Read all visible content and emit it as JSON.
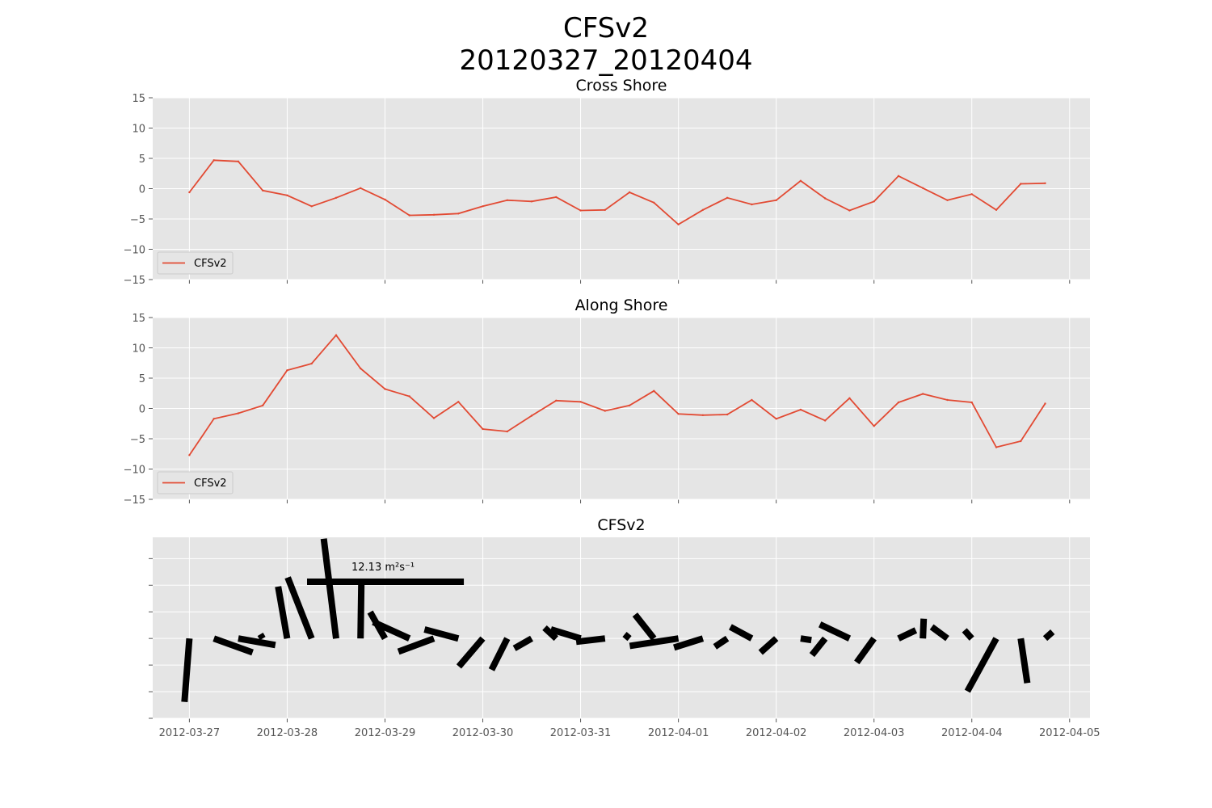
{
  "figure": {
    "title_line1": "CFSv2",
    "title_line2": "20120327_20120404"
  },
  "chart_data": [
    {
      "type": "line",
      "title": "Cross Shore",
      "legend": "lower-left",
      "grid": true,
      "ylim": [
        -15,
        15
      ],
      "yticks": [
        15,
        10,
        5,
        0,
        -5,
        -10,
        -15
      ],
      "xlim": [
        "2012-03-26 15:00",
        "2012-04-05 05:00"
      ],
      "series": [
        {
          "name": "CFSv2",
          "color": "#E24A33",
          "x": [
            "2012-03-27 00:00",
            "2012-03-27 06:00",
            "2012-03-27 12:00",
            "2012-03-27 18:00",
            "2012-03-28 00:00",
            "2012-03-28 06:00",
            "2012-03-28 12:00",
            "2012-03-28 18:00",
            "2012-03-29 00:00",
            "2012-03-29 06:00",
            "2012-03-29 12:00",
            "2012-03-29 18:00",
            "2012-03-30 00:00",
            "2012-03-30 06:00",
            "2012-03-30 12:00",
            "2012-03-30 18:00",
            "2012-03-31 00:00",
            "2012-03-31 06:00",
            "2012-03-31 12:00",
            "2012-03-31 18:00",
            "2012-04-01 00:00",
            "2012-04-01 06:00",
            "2012-04-01 12:00",
            "2012-04-01 18:00",
            "2012-04-02 00:00",
            "2012-04-02 06:00",
            "2012-04-02 12:00",
            "2012-04-02 18:00",
            "2012-04-03 00:00",
            "2012-04-03 06:00",
            "2012-04-03 12:00",
            "2012-04-03 18:00",
            "2012-04-04 00:00",
            "2012-04-04 06:00",
            "2012-04-04 12:00",
            "2012-04-04 18:00"
          ],
          "values": [
            -0.6,
            4.7,
            4.5,
            -0.3,
            -1.1,
            -2.9,
            -1.5,
            0.1,
            -1.8,
            -4.4,
            -4.3,
            -4.1,
            -2.9,
            -1.9,
            -2.1,
            -1.4,
            -3.6,
            -3.5,
            -0.6,
            -2.3,
            -5.9,
            -3.5,
            -1.5,
            -2.6,
            -1.9,
            1.3,
            -1.6,
            -3.6,
            -2.1,
            2.1,
            0.1,
            -1.9,
            -0.9,
            -3.5,
            0.8,
            0.9
          ]
        }
      ]
    },
    {
      "type": "line",
      "title": "Along Shore",
      "legend": "lower-left",
      "grid": true,
      "ylim": [
        -15,
        15
      ],
      "yticks": [
        15,
        10,
        5,
        0,
        -5,
        -10,
        -15
      ],
      "xlim": [
        "2012-03-26 15:00",
        "2012-04-05 05:00"
      ],
      "series": [
        {
          "name": "CFSv2",
          "color": "#E24A33",
          "x": [
            "2012-03-27 00:00",
            "2012-03-27 06:00",
            "2012-03-27 12:00",
            "2012-03-27 18:00",
            "2012-03-28 00:00",
            "2012-03-28 06:00",
            "2012-03-28 12:00",
            "2012-03-28 18:00",
            "2012-03-29 00:00",
            "2012-03-29 06:00",
            "2012-03-29 12:00",
            "2012-03-29 18:00",
            "2012-03-30 00:00",
            "2012-03-30 06:00",
            "2012-03-30 12:00",
            "2012-03-30 18:00",
            "2012-03-31 00:00",
            "2012-03-31 06:00",
            "2012-03-31 12:00",
            "2012-03-31 18:00",
            "2012-04-01 00:00",
            "2012-04-01 06:00",
            "2012-04-01 12:00",
            "2012-04-01 18:00",
            "2012-04-02 00:00",
            "2012-04-02 06:00",
            "2012-04-02 12:00",
            "2012-04-02 18:00",
            "2012-04-03 00:00",
            "2012-04-03 06:00",
            "2012-04-03 12:00",
            "2012-04-03 18:00",
            "2012-04-04 00:00",
            "2012-04-04 06:00",
            "2012-04-04 12:00",
            "2012-04-04 18:00"
          ],
          "values": [
            -7.7,
            -1.7,
            -0.8,
            0.5,
            6.3,
            7.4,
            12.1,
            6.6,
            3.2,
            2.0,
            -1.6,
            1.1,
            -3.4,
            -3.8,
            -1.2,
            1.3,
            1.1,
            -0.4,
            0.5,
            2.9,
            -0.9,
            -1.1,
            -1.0,
            1.4,
            -1.7,
            -0.2,
            -2.0,
            1.7,
            -2.9,
            1.0,
            2.4,
            1.4,
            1.0,
            -6.4,
            -5.4,
            0.8
          ]
        }
      ]
    },
    {
      "type": "quiver",
      "title": "CFSv2",
      "grid": true,
      "ylim": [
        -3.0,
        3.8
      ],
      "yticks_labeled": false,
      "key_label": "12.13 m²s⁻¹",
      "key_magnitude": 12.13,
      "xlim": [
        "2012-03-26 15:00",
        "2012-04-05 05:00"
      ],
      "vectors": {
        "x": [
          "2012-03-27 00:00",
          "2012-03-27 06:00",
          "2012-03-27 12:00",
          "2012-03-27 18:00",
          "2012-03-28 00:00",
          "2012-03-28 06:00",
          "2012-03-28 12:00",
          "2012-03-28 18:00",
          "2012-03-29 00:00",
          "2012-03-29 06:00",
          "2012-03-29 12:00",
          "2012-03-29 18:00",
          "2012-03-30 00:00",
          "2012-03-30 06:00",
          "2012-03-30 12:00",
          "2012-03-30 18:00",
          "2012-03-31 00:00",
          "2012-03-31 06:00",
          "2012-03-31 12:00",
          "2012-03-31 18:00",
          "2012-04-01 00:00",
          "2012-04-01 06:00",
          "2012-04-01 12:00",
          "2012-04-01 18:00",
          "2012-04-02 00:00",
          "2012-04-02 06:00",
          "2012-04-02 12:00",
          "2012-04-02 18:00",
          "2012-04-03 00:00",
          "2012-04-03 06:00",
          "2012-04-03 12:00",
          "2012-04-03 18:00",
          "2012-04-04 00:00",
          "2012-04-04 06:00",
          "2012-04-04 12:00",
          "2012-04-04 18:00"
        ],
        "u": [
          -0.6,
          4.7,
          4.5,
          -0.3,
          -1.1,
          -2.9,
          -1.5,
          0.1,
          -1.8,
          -4.4,
          -4.3,
          -4.1,
          -2.9,
          -1.9,
          -2.1,
          -1.4,
          -3.6,
          -3.5,
          -0.6,
          -2.3,
          -5.9,
          -3.5,
          -1.5,
          -2.6,
          -1.9,
          1.3,
          -1.6,
          -3.6,
          -2.1,
          2.1,
          0.1,
          -1.9,
          -0.9,
          -3.5,
          0.8,
          0.9
        ],
        "v": [
          -7.7,
          -1.7,
          -0.8,
          0.5,
          6.3,
          7.4,
          12.1,
          6.6,
          3.2,
          2.0,
          -1.6,
          1.1,
          -3.4,
          -3.8,
          -1.2,
          1.3,
          1.1,
          -0.4,
          0.5,
          2.9,
          -0.9,
          -1.1,
          -1.0,
          1.4,
          -1.7,
          -0.2,
          -2.0,
          1.7,
          -2.9,
          1.0,
          2.4,
          1.4,
          1.0,
          -6.4,
          -5.4,
          0.8
        ]
      }
    }
  ],
  "x_axis": {
    "ticks": [
      "2012-03-27",
      "2012-03-28",
      "2012-03-29",
      "2012-03-30",
      "2012-03-31",
      "2012-04-01",
      "2012-04-02",
      "2012-04-03",
      "2012-04-04",
      "2012-04-05"
    ]
  }
}
